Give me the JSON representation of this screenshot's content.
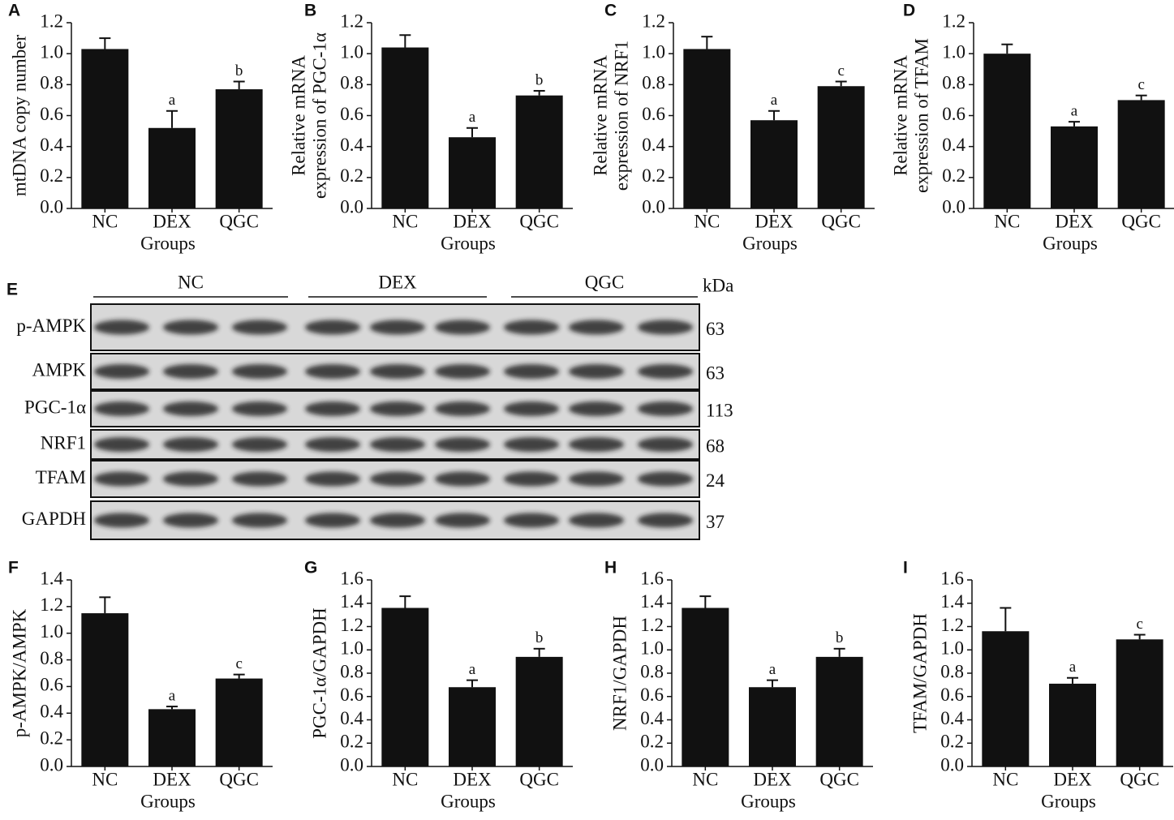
{
  "chart_data": [
    {
      "type": "bar",
      "panel": "A",
      "ylabel": [
        "mtDNA copy number"
      ],
      "xlabel": "Groups",
      "categories": [
        "NC",
        "DEX",
        "QGC"
      ],
      "values": [
        1.03,
        0.52,
        0.77
      ],
      "errors": [
        0.07,
        0.11,
        0.05
      ],
      "annotations": [
        null,
        "a",
        "b"
      ],
      "color": "#111111",
      "ylim": [
        0,
        1.2
      ],
      "yticks": [
        {
          "value": 0,
          "label": "0.0"
        },
        0.2,
        0.4,
        0.6,
        0.8,
        {
          "value": 1,
          "label": "1.0"
        },
        1.2
      ]
    },
    {
      "type": "bar",
      "panel": "B",
      "ylabel": [
        "Relative mRNA",
        "expression of PGC-1α"
      ],
      "xlabel": "Groups",
      "categories": [
        "NC",
        "DEX",
        "QGC"
      ],
      "values": [
        1.04,
        0.46,
        0.73
      ],
      "errors": [
        0.08,
        0.06,
        0.03
      ],
      "annotations": [
        null,
        "a",
        "b"
      ],
      "color": "#111111",
      "ylim": [
        0,
        1.2
      ],
      "yticks": [
        {
          "value": 0,
          "label": "0.0"
        },
        0.2,
        0.4,
        0.6,
        0.8,
        {
          "value": 1,
          "label": "1.0"
        },
        1.2
      ]
    },
    {
      "type": "bar",
      "panel": "C",
      "ylabel": [
        "Relative mRNA",
        "expression of NRF1"
      ],
      "xlabel": "Groups",
      "categories": [
        "NC",
        "DEX",
        "QGC"
      ],
      "values": [
        1.03,
        0.57,
        0.79
      ],
      "errors": [
        0.08,
        0.06,
        0.03
      ],
      "annotations": [
        null,
        "a",
        "c"
      ],
      "color": "#111111",
      "ylim": [
        0,
        1.2
      ],
      "yticks": [
        {
          "value": 0,
          "label": "0.0"
        },
        0.2,
        0.4,
        0.6,
        0.8,
        {
          "value": 1,
          "label": "1.0"
        },
        1.2
      ]
    },
    {
      "type": "bar",
      "panel": "D",
      "ylabel": [
        "Relative mRNA",
        "expression of TFAM"
      ],
      "xlabel": "Groups",
      "categories": [
        "NC",
        "DEX",
        "QGC"
      ],
      "values": [
        1.0,
        0.53,
        0.7
      ],
      "errors": [
        0.06,
        0.03,
        0.03
      ],
      "annotations": [
        null,
        "a",
        "c"
      ],
      "color": "#111111",
      "ylim": [
        0,
        1.2
      ],
      "yticks": [
        {
          "value": 0,
          "label": "0.0"
        },
        0.2,
        0.4,
        0.6,
        0.8,
        {
          "value": 1,
          "label": "1.0"
        },
        1.2
      ]
    },
    {
      "type": "bar",
      "panel": "F",
      "ylabel": [
        "p-AMPK/AMPK"
      ],
      "xlabel": "Groups",
      "categories": [
        "NC",
        "DEX",
        "QGC"
      ],
      "values": [
        1.15,
        0.43,
        0.66
      ],
      "errors": [
        0.12,
        0.02,
        0.03
      ],
      "annotations": [
        null,
        "a",
        "c"
      ],
      "color": "#111111",
      "ylim": [
        0,
        1.4
      ],
      "yticks": [
        {
          "value": 0,
          "label": "0.0"
        },
        0.2,
        0.4,
        0.6,
        0.8,
        {
          "value": 1,
          "label": "1.0"
        },
        1.2,
        1.4
      ]
    },
    {
      "type": "bar",
      "panel": "G",
      "ylabel": [
        "PGC-1α/GAPDH"
      ],
      "xlabel": "Groups",
      "categories": [
        "NC",
        "DEX",
        "QGC"
      ],
      "values": [
        1.36,
        0.68,
        0.94
      ],
      "errors": [
        0.1,
        0.06,
        0.07
      ],
      "annotations": [
        null,
        "a",
        "b"
      ],
      "color": "#111111",
      "ylim": [
        0,
        1.6
      ],
      "yticks": [
        {
          "value": 0,
          "label": "0.0"
        },
        0.2,
        0.4,
        0.6,
        0.8,
        {
          "value": 1,
          "label": "1.0"
        },
        1.2,
        1.4,
        1.6
      ]
    },
    {
      "type": "bar",
      "panel": "H",
      "ylabel": [
        "NRF1/GAPDH"
      ],
      "xlabel": "Groups",
      "categories": [
        "NC",
        "DEX",
        "QGC"
      ],
      "values": [
        1.36,
        0.68,
        0.94
      ],
      "errors": [
        0.1,
        0.06,
        0.07
      ],
      "annotations": [
        null,
        "a",
        "b"
      ],
      "color": "#111111",
      "ylim": [
        0,
        1.6
      ],
      "yticks": [
        {
          "value": 0,
          "label": "0.0"
        },
        0.2,
        0.4,
        0.6,
        0.8,
        {
          "value": 1,
          "label": "1.0"
        },
        1.2,
        1.4,
        1.6
      ]
    },
    {
      "type": "bar",
      "panel": "I",
      "ylabel": [
        "TFAM/GAPDH"
      ],
      "xlabel": "Groups",
      "categories": [
        "NC",
        "DEX",
        "QGC"
      ],
      "values": [
        1.16,
        0.71,
        1.09
      ],
      "errors": [
        0.2,
        0.05,
        0.04
      ],
      "annotations": [
        null,
        "a",
        "c"
      ],
      "color": "#111111",
      "ylim": [
        0,
        1.6
      ],
      "yticks": [
        {
          "value": 0,
          "label": "0.0"
        },
        0.2,
        0.4,
        0.6,
        0.8,
        {
          "value": 1,
          "label": "1.0"
        },
        1.2,
        1.4,
        1.6
      ]
    }
  ],
  "blot": {
    "panel": "E",
    "groups": [
      "NC",
      "DEX",
      "QGC"
    ],
    "unit": "kDa",
    "rows": [
      {
        "label": "p-AMPK",
        "size": "63"
      },
      {
        "label": "AMPK",
        "size": "63"
      },
      {
        "label": "PGC-1α",
        "size": "113"
      },
      {
        "label": "NRF1",
        "size": "68"
      },
      {
        "label": "TFAM",
        "size": "24"
      },
      {
        "label": "GAPDH",
        "size": "37"
      }
    ]
  }
}
